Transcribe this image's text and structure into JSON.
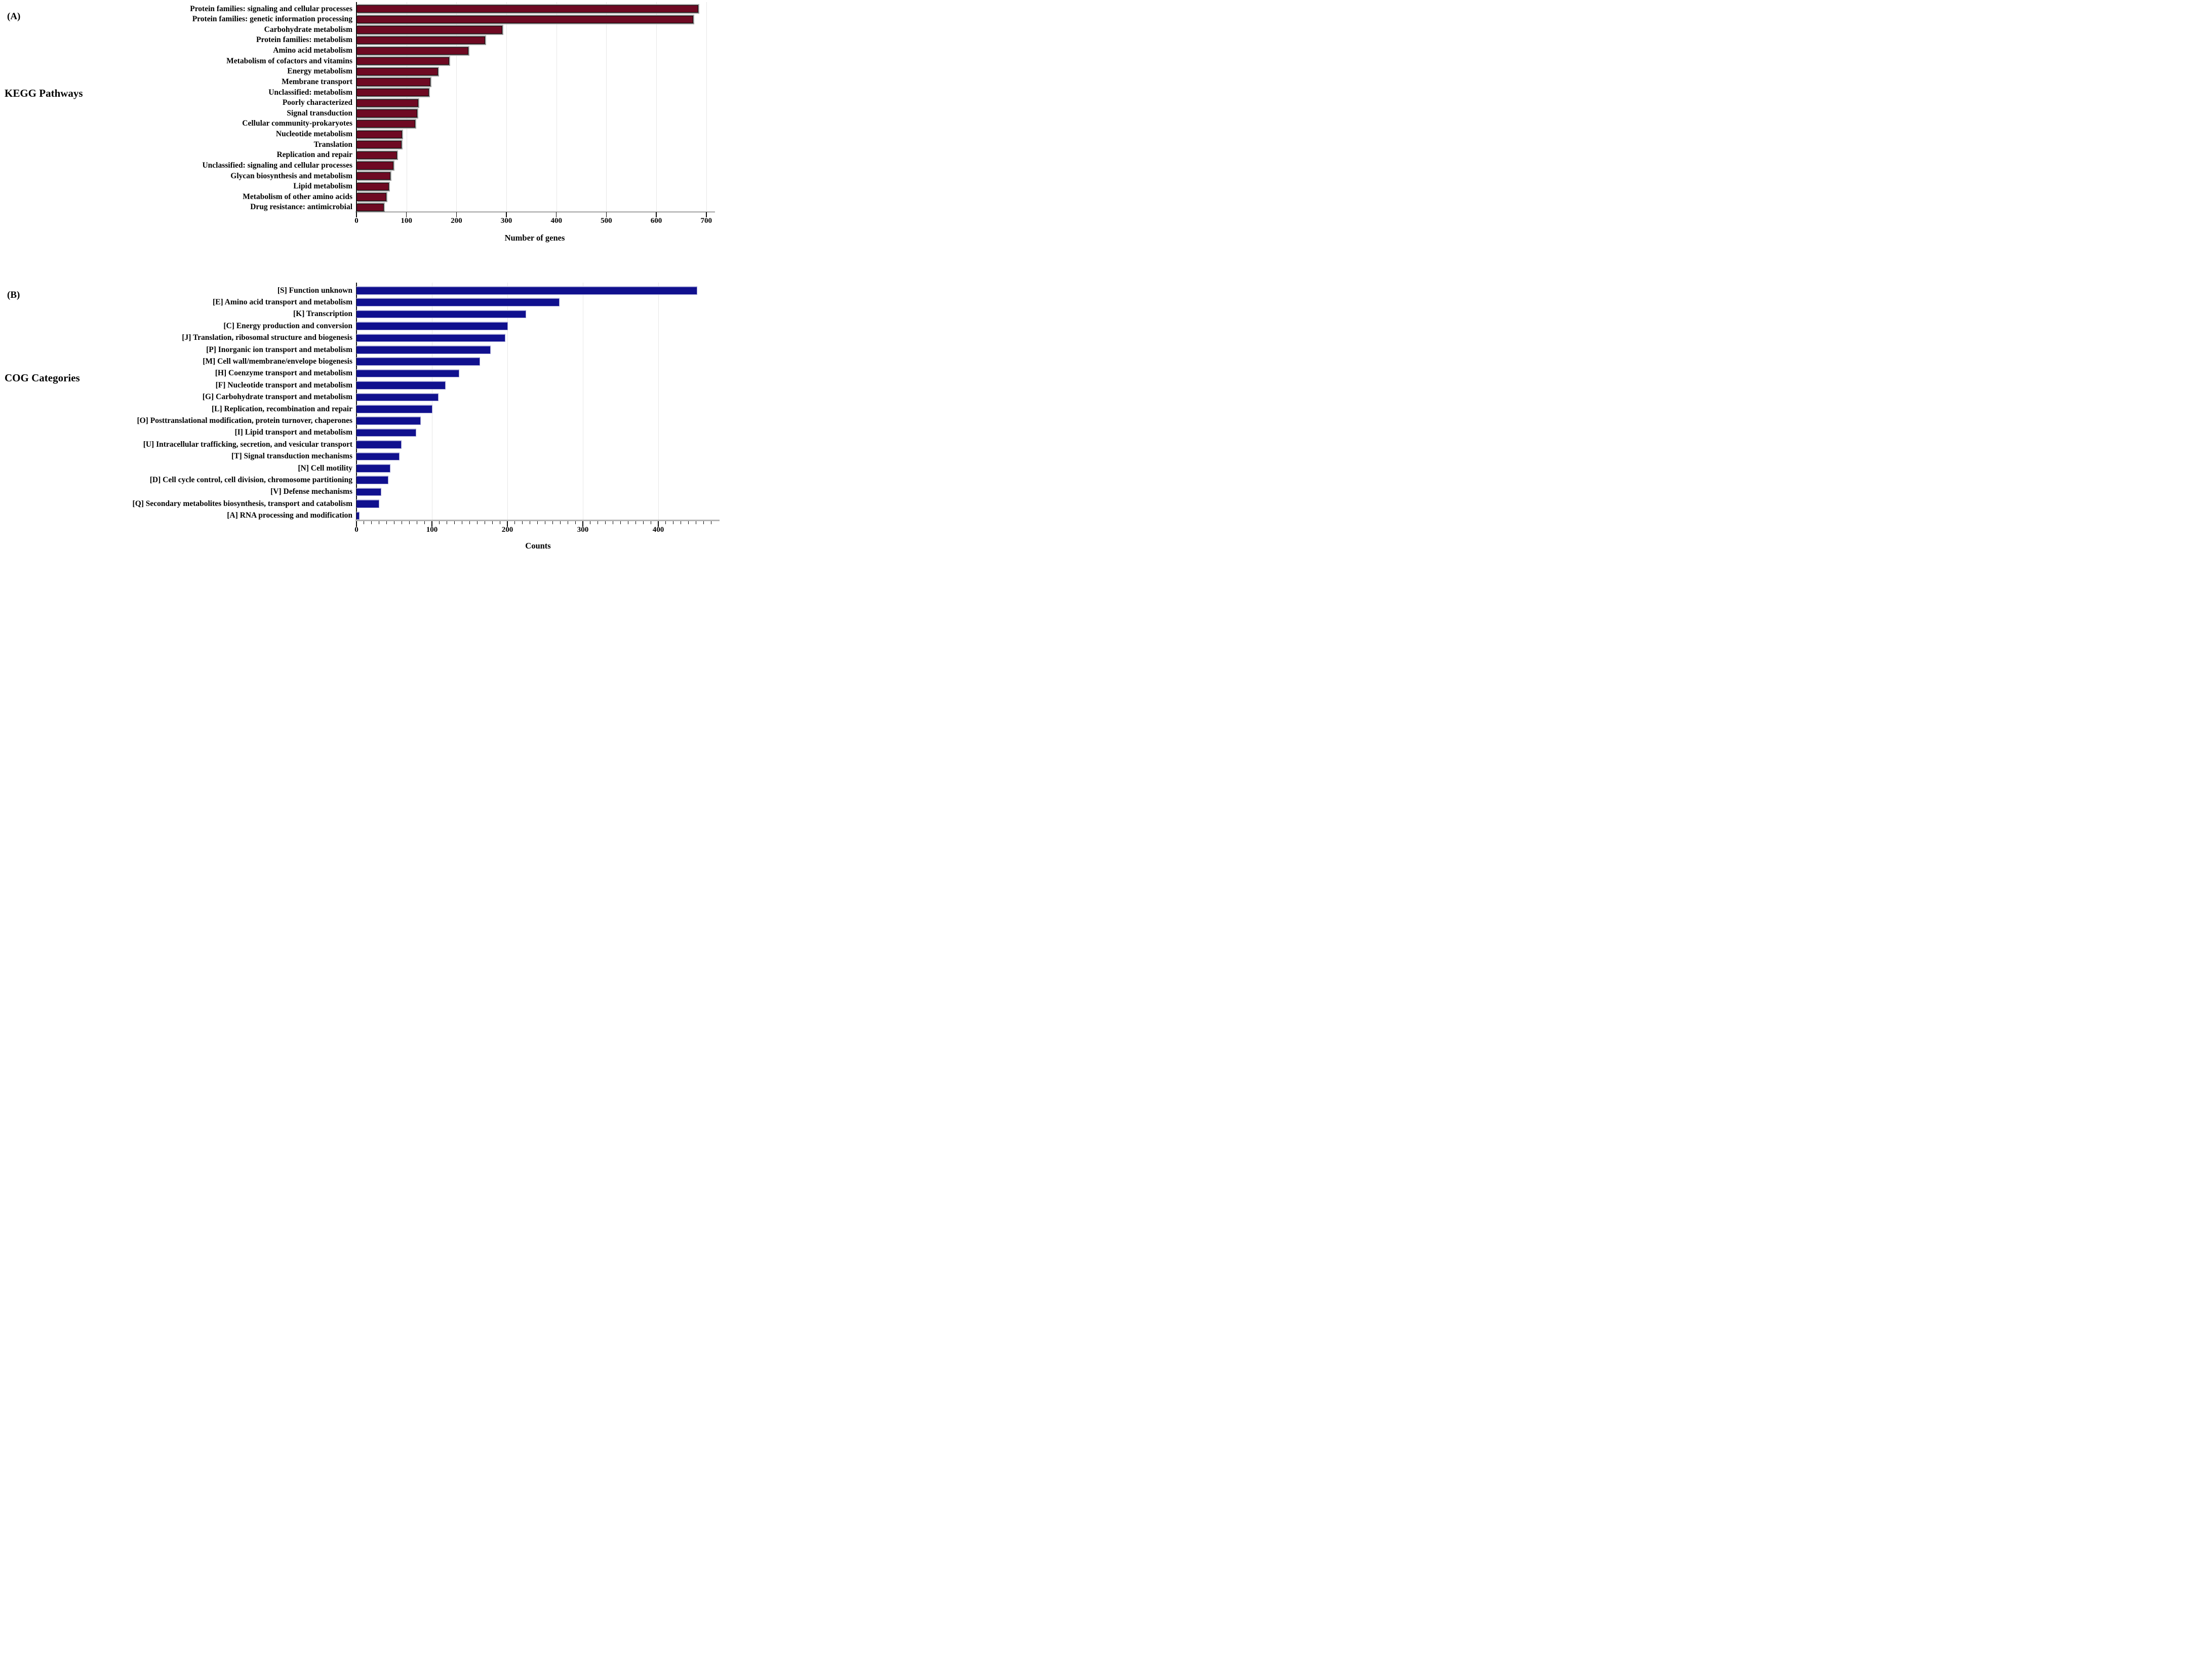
{
  "chart_data": [
    {
      "type": "bar",
      "orientation": "horizontal",
      "tag": "(A)",
      "side_label": "KEGG Pathways",
      "xlabel": "Number of genes",
      "bar_color": "#6E0A23",
      "grid": true,
      "xlim": [
        0,
        713
      ],
      "xticks": [
        0,
        100,
        200,
        300,
        400,
        500,
        600,
        700
      ],
      "categories": [
        "Protein families: signaling and cellular processes",
        "Protein families: genetic information processing",
        "Carbohydrate metabolism",
        "Protein families: metabolism",
        "Amino acid metabolism",
        "Metabolism of cofactors and vitamins",
        "Energy metabolism",
        "Membrane transport",
        "Unclassified: metabolism",
        "Poorly characterized",
        "Signal transduction",
        "Cellular community-prokaryotes",
        "Nucleotide metabolism",
        "Translation",
        "Replication and repair",
        "Unclassified: signaling and cellular processes",
        "Glycan biosynthesis and metabolism",
        "Lipid metabolism",
        "Metabolism of other amino acids",
        "Drug resistance: antimicrobial"
      ],
      "values": [
        684,
        674,
        292,
        257,
        224,
        185,
        163,
        148,
        145,
        124,
        122,
        118,
        91,
        90,
        81,
        74,
        68,
        65,
        60,
        55
      ]
    },
    {
      "type": "bar",
      "orientation": "horizontal",
      "tag": "(B)",
      "side_label": "COG Categories",
      "xlabel": "Counts",
      "bar_color": "#10108E",
      "grid": true,
      "xlim": [
        0,
        481
      ],
      "xticks": [
        0,
        100,
        200,
        300,
        400
      ],
      "xticks_minor_step": 10,
      "categories": [
        "[S] Function unknown",
        "[E] Amino acid transport and metabolism",
        "[K] Transcription",
        "[C] Energy production and conversion",
        "[J] Translation, ribosomal structure and biogenesis",
        "[P] Inorganic ion transport and metabolism",
        "[M] Cell wall/membrane/envelope biogenesis",
        "[H] Coenzyme transport and metabolism",
        "[F] Nucleotide transport and metabolism",
        "[G] Carbohydrate transport and metabolism",
        "[L] Replication, recombination and repair",
        "[O] Posttranslational modification, protein turnover, chaperones",
        "[I] Lipid transport and metabolism",
        "[U] Intracellular trafficking, secretion, and vesicular transport",
        "[T] Signal transduction mechanisms",
        "[N] Cell motility",
        "[D] Cell cycle control, cell division, chromosome partitioning",
        "[V] Defense mechanisms",
        "[Q] Secondary metabolites biosynthesis, transport and catabolism",
        "[A] RNA processing and modification"
      ],
      "values": [
        452,
        269,
        225,
        201,
        197,
        178,
        164,
        136,
        118,
        109,
        101,
        85,
        79,
        60,
        57,
        45,
        42,
        33,
        30,
        4
      ]
    }
  ]
}
